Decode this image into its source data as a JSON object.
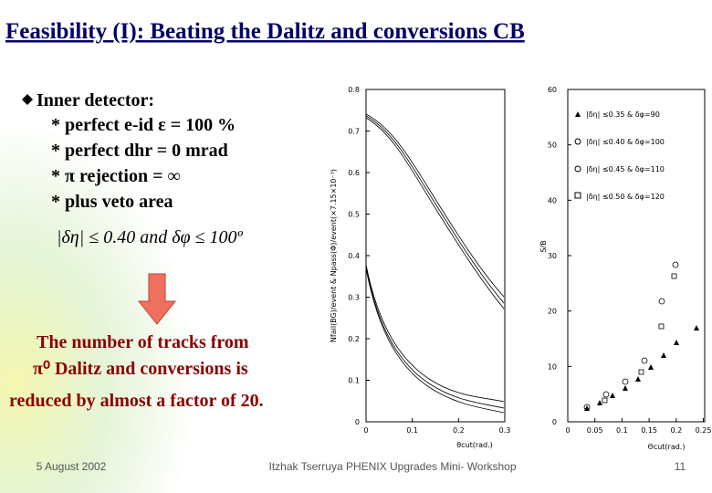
{
  "title": "Feasibility (I): Beating the Dalitz and conversions CB",
  "bullets": {
    "heading": "Inner detector:",
    "items": [
      "* perfect e-id   ε = 100 %",
      "* perfect dhr = 0 mrad",
      "* π  rejection = ∞",
      "* plus veto area"
    ],
    "condition": "|δη| ≤ 0.40 and δφ ≤ 100º"
  },
  "caption": [
    "The number of tracks from",
    "π⁰ Dalitz and conversions is",
    "reduced by almost a factor of 20."
  ],
  "figures": [
    {
      "ylabel": "Nfail(BG)/event & Npass(Φ)/event(×7.15×10⁻³)",
      "xlabel": "θcut(rad.)",
      "yticks": [
        "0.8",
        "0.7",
        "0.6",
        "0.5",
        "0.4",
        "0.3",
        "0.2",
        "0.1",
        "0"
      ],
      "xticks": [
        "0",
        "0.1",
        "0.2",
        "0.3"
      ]
    },
    {
      "ylabel": "S/B",
      "xlabel": "Θcut(rad.)",
      "yticks": [
        "60",
        "50",
        "40",
        "30",
        "20",
        "10",
        "0"
      ],
      "xticks": [
        "0",
        "0.05",
        "0.1",
        "0.15",
        "0.2",
        "0.25"
      ],
      "legend": [
        "|δη| ≤0.35 & δφ=90",
        "|δη| ≤0.40 & δφ=100",
        "|δη| ≤0.45 & δφ=110",
        "|δη| ≤0.50 & δφ=120"
      ]
    }
  ],
  "footer": {
    "date": "5 August 2002",
    "author": "Itzhak Tserruya PHENIX Upgrades Mini- Workshop",
    "page": "11"
  }
}
